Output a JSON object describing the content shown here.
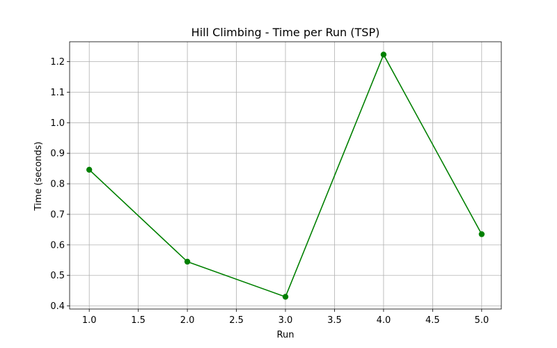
{
  "chart_data": {
    "type": "line",
    "title": "Hill Climbing - Time per Run (TSP)",
    "xlabel": "Run",
    "ylabel": "Time (seconds)",
    "x": [
      1.0,
      2.0,
      3.0,
      4.0,
      5.0
    ],
    "series": [
      {
        "values": [
          0.846,
          0.545,
          0.43,
          1.223,
          0.635
        ],
        "color": "#008000",
        "marker": "circle"
      }
    ],
    "xlim": [
      0.8,
      5.2
    ],
    "ylim": [
      0.39,
      1.265
    ],
    "xticks": [
      1.0,
      1.5,
      2.0,
      2.5,
      3.0,
      3.5,
      4.0,
      4.5,
      5.0
    ],
    "xtick_labels": [
      "1.0",
      "1.5",
      "2.0",
      "2.5",
      "3.0",
      "3.5",
      "4.0",
      "4.5",
      "5.0"
    ],
    "yticks": [
      0.4,
      0.5,
      0.6,
      0.7,
      0.8,
      0.9,
      1.0,
      1.1,
      1.2
    ],
    "ytick_labels": [
      "0.4",
      "0.5",
      "0.6",
      "0.7",
      "0.8",
      "0.9",
      "1.0",
      "1.1",
      "1.2"
    ],
    "grid": true,
    "legend": "none"
  }
}
